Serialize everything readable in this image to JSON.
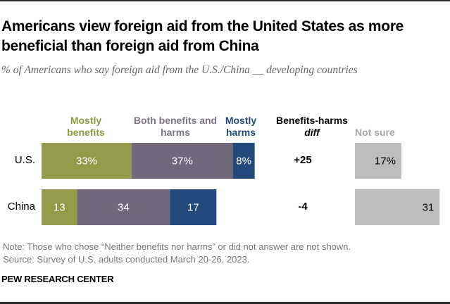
{
  "title": "Americans view foreign aid from the United States as more beneficial than foreign aid from China",
  "subtitle": "% of Americans who say foreign aid from the U.S./China __ developing countries",
  "headers": {
    "mostly_benefits": "Mostly benefits",
    "both": "Both benefits and harms",
    "mostly_harms": "Mostly harms",
    "diff_line1": "Benefits-harms",
    "diff_line2": "diff",
    "not_sure": "Not sure"
  },
  "colors": {
    "mostly_benefits": "#939a4a",
    "both": "#71687c",
    "mostly_harms": "#234a7a",
    "not_sure": "#bdbdbd",
    "mostly_benefits_label": "#8b9a45",
    "both_label": "#7c7488",
    "mostly_harms_label": "#234a7a",
    "not_sure_label": "#a6a6a6"
  },
  "chart_data": {
    "type": "bar",
    "orientation": "horizontal-stacked",
    "title": "Americans view foreign aid from the United States as more beneficial than foreign aid from China",
    "subtitle": "% of Americans who say foreign aid from the U.S./China __ developing countries",
    "categories": [
      "U.S.",
      "China"
    ],
    "series": [
      {
        "name": "Mostly benefits",
        "values": [
          33,
          13
        ],
        "labels": [
          "33%",
          "13"
        ]
      },
      {
        "name": "Both benefits and harms",
        "values": [
          37,
          34
        ],
        "labels": [
          "37%",
          "34"
        ]
      },
      {
        "name": "Mostly harms",
        "values": [
          8,
          17
        ],
        "labels": [
          "8%",
          "17"
        ]
      }
    ],
    "diff": {
      "name": "Benefits-harms diff",
      "values": [
        25,
        -4
      ],
      "labels": [
        "+25",
        "-4"
      ]
    },
    "not_sure": {
      "name": "Not sure",
      "values": [
        17,
        31
      ],
      "labels": [
        "17%",
        "31"
      ]
    },
    "xlabel": "",
    "ylabel": "",
    "grid": false
  },
  "notes": {
    "note": "Note: Those who chose “Neither benefits nor harms” or did not answer are not shown.",
    "source": "Source: Survey of U.S. adults conducted March 20-26, 2023."
  },
  "brand": "PEW RESEARCH CENTER"
}
